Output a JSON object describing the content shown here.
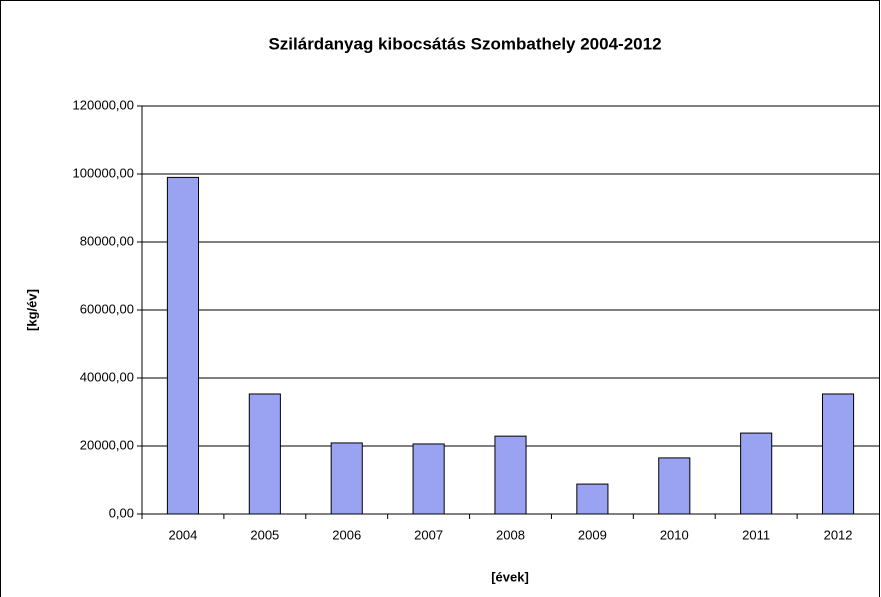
{
  "chart_data": {
    "type": "bar",
    "title": "Szilárdanyag kibocsátás Szombathely 2004-2012",
    "x_label": "[évek]",
    "y_label": "[kg/év]",
    "categories": [
      "2004",
      "2005",
      "2006",
      "2007",
      "2008",
      "2009",
      "2010",
      "2011",
      "2012"
    ],
    "values": [
      99000,
      35300,
      20900,
      20600,
      22900,
      8800,
      16500,
      23800,
      35300
    ],
    "color": "#9aa3f2",
    "ylim": [
      0,
      120000
    ],
    "yticks": [
      {
        "value": 0,
        "label": "0,00"
      },
      {
        "value": 20000,
        "label": "20000,00"
      },
      {
        "value": 40000,
        "label": "40000,00"
      },
      {
        "value": 60000,
        "label": "60000,00"
      },
      {
        "value": 80000,
        "label": "80000,00"
      },
      {
        "value": 100000,
        "label": "100000,00"
      },
      {
        "value": 120000,
        "label": "120000,00"
      }
    ],
    "grid": true
  }
}
